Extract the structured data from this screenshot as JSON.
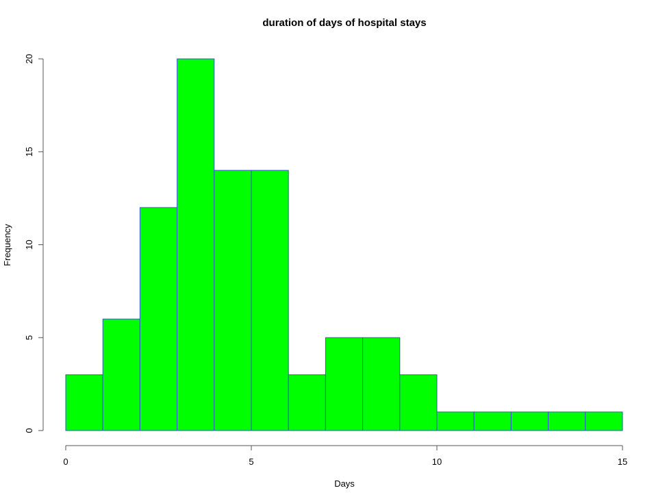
{
  "chart_data": {
    "type": "bar",
    "title": "duration of days of hospital stays",
    "xlabel": "Days",
    "ylabel": "Frequency",
    "bin_edges": [
      0,
      1,
      2,
      3,
      4,
      5,
      6,
      7,
      8,
      9,
      10,
      11,
      12,
      13,
      14,
      15
    ],
    "values": [
      3,
      6,
      12,
      20,
      14,
      14,
      3,
      5,
      5,
      3,
      1,
      1,
      1,
      1,
      1
    ],
    "xlim": [
      0,
      15
    ],
    "ylim": [
      0,
      20
    ],
    "x_ticks": [
      0,
      5,
      10,
      15
    ],
    "y_ticks": [
      0,
      5,
      10,
      15,
      20
    ],
    "grid": false,
    "legend": "none",
    "colors": {
      "bar_fill": "#00ff00",
      "bar_border": "#3355cc"
    }
  }
}
